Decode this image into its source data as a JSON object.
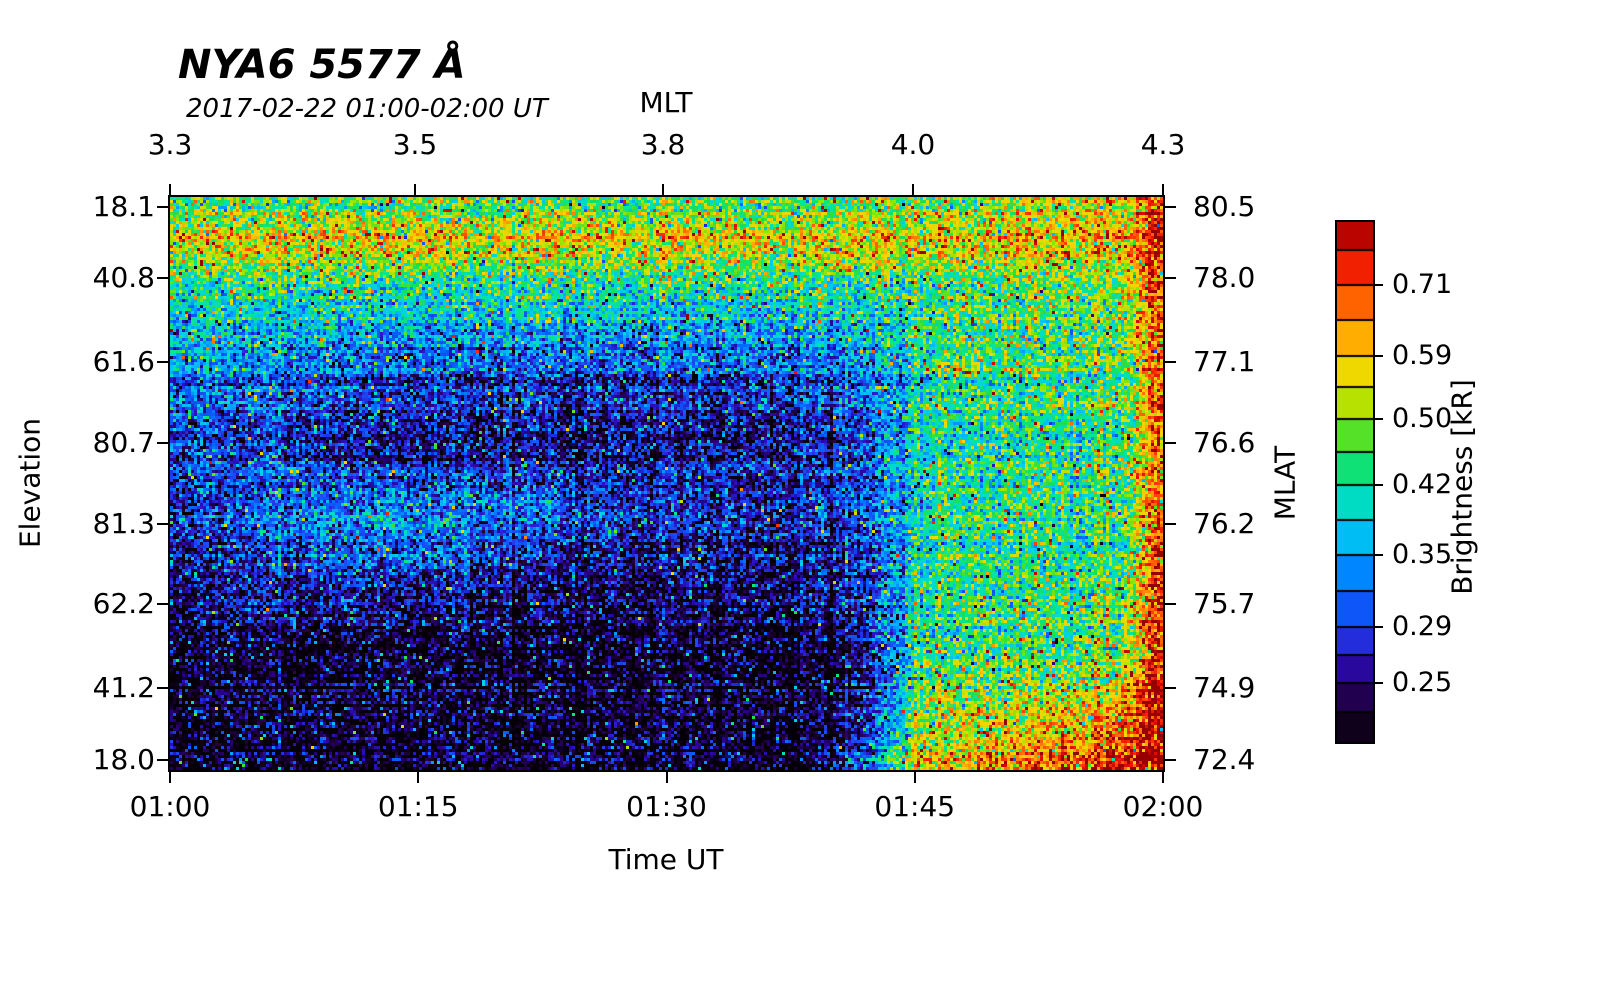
{
  "chart_data": {
    "type": "heatmap",
    "title": "NYA6 5577 Å",
    "subtitle": "2017-02-22 01:00-02:00 UT",
    "background": "#ffffff",
    "axes": {
      "top": {
        "label": "MLT",
        "ticks": [
          "3.3",
          "3.5",
          "3.8",
          "4.0",
          "4.3"
        ],
        "positions": [
          0,
          0.2467,
          0.4965,
          0.7482,
          1
        ]
      },
      "bottom": {
        "label": "Time UT",
        "ticks": [
          "01:00",
          "01:15",
          "01:30",
          "01:45",
          "02:00"
        ],
        "positions": [
          0,
          0.25,
          0.5,
          0.75,
          1
        ]
      },
      "left": {
        "label": "Elevation",
        "ticks": [
          "18.1",
          "40.8",
          "61.6",
          "80.7",
          "81.3",
          "62.2",
          "41.2",
          "18.0"
        ],
        "positions": [
          0.0175,
          0.1414,
          0.288,
          0.4293,
          0.5707,
          0.7103,
          0.8569,
          0.9825
        ]
      },
      "right": {
        "label": "MLAT",
        "ticks": [
          "80.5",
          "78.0",
          "77.1",
          "76.6",
          "76.2",
          "75.7",
          "74.9",
          "72.4"
        ],
        "positions": [
          0.0175,
          0.1414,
          0.288,
          0.4293,
          0.5707,
          0.7103,
          0.8569,
          0.9825
        ]
      }
    },
    "colorbar": {
      "label": "Brightness [kR]",
      "ticks": [
        0.71,
        0.59,
        0.5,
        0.42,
        0.35,
        0.29,
        0.25
      ],
      "scale": "log",
      "value_range": [
        0.21,
        0.84
      ]
    },
    "colormap_stops": [
      {
        "t": 0.0,
        "color": "#050008"
      },
      {
        "t": 0.07,
        "color": "#1c0038"
      },
      {
        "t": 0.12,
        "color": "#280080"
      },
      {
        "t": 0.17,
        "color": "#2814c8"
      },
      {
        "t": 0.22,
        "color": "#1e46f0"
      },
      {
        "t": 0.29,
        "color": "#0064ff"
      },
      {
        "t": 0.36,
        "color": "#00aaff"
      },
      {
        "t": 0.43,
        "color": "#00d2e6"
      },
      {
        "t": 0.49,
        "color": "#00e6a0"
      },
      {
        "t": 0.56,
        "color": "#1edc50"
      },
      {
        "t": 0.62,
        "color": "#8ce600"
      },
      {
        "t": 0.68,
        "color": "#dcdc00"
      },
      {
        "t": 0.74,
        "color": "#ffd200"
      },
      {
        "t": 0.8,
        "color": "#ff9600"
      },
      {
        "t": 0.88,
        "color": "#ff3c00"
      },
      {
        "t": 0.94,
        "color": "#e60a00"
      },
      {
        "t": 1.0,
        "color": "#960000"
      }
    ],
    "grid": {
      "rows": 14,
      "cols": 21,
      "row_axis": "elevation scan, top (18.1) to bottom (18.0)",
      "col_axis": "time 01:00 to 02:00 UT, last column is right-edge red strip",
      "units": "kR (approximate brightness read from colorbar)",
      "values": [
        [
          0.46,
          0.47,
          0.45,
          0.48,
          0.46,
          0.47,
          0.45,
          0.46,
          0.47,
          0.45,
          0.47,
          0.46,
          0.47,
          0.45,
          0.47,
          0.49,
          0.5,
          0.51,
          0.54,
          0.58,
          0.72
        ],
        [
          0.55,
          0.57,
          0.54,
          0.56,
          0.55,
          0.57,
          0.54,
          0.55,
          0.56,
          0.54,
          0.56,
          0.55,
          0.54,
          0.55,
          0.55,
          0.54,
          0.55,
          0.56,
          0.57,
          0.6,
          0.74
        ],
        [
          0.45,
          0.43,
          0.44,
          0.42,
          0.44,
          0.43,
          0.42,
          0.44,
          0.43,
          0.42,
          0.43,
          0.44,
          0.42,
          0.43,
          0.44,
          0.45,
          0.46,
          0.46,
          0.47,
          0.51,
          0.7
        ],
        [
          0.38,
          0.37,
          0.36,
          0.35,
          0.35,
          0.34,
          0.34,
          0.35,
          0.34,
          0.34,
          0.35,
          0.34,
          0.35,
          0.35,
          0.37,
          0.43,
          0.45,
          0.44,
          0.45,
          0.47,
          0.68
        ],
        [
          0.34,
          0.33,
          0.31,
          0.3,
          0.29,
          0.29,
          0.28,
          0.29,
          0.28,
          0.29,
          0.28,
          0.29,
          0.29,
          0.3,
          0.32,
          0.42,
          0.44,
          0.43,
          0.44,
          0.46,
          0.68
        ],
        [
          0.31,
          0.3,
          0.29,
          0.28,
          0.27,
          0.27,
          0.26,
          0.27,
          0.26,
          0.27,
          0.27,
          0.26,
          0.27,
          0.28,
          0.3,
          0.42,
          0.43,
          0.42,
          0.43,
          0.45,
          0.69
        ],
        [
          0.3,
          0.29,
          0.28,
          0.27,
          0.26,
          0.26,
          0.26,
          0.26,
          0.25,
          0.26,
          0.26,
          0.26,
          0.26,
          0.27,
          0.29,
          0.42,
          0.43,
          0.42,
          0.43,
          0.45,
          0.7
        ],
        [
          0.28,
          0.29,
          0.31,
          0.32,
          0.33,
          0.33,
          0.32,
          0.31,
          0.29,
          0.28,
          0.27,
          0.27,
          0.27,
          0.28,
          0.3,
          0.41,
          0.42,
          0.42,
          0.42,
          0.44,
          0.7
        ],
        [
          0.27,
          0.28,
          0.29,
          0.31,
          0.32,
          0.31,
          0.3,
          0.28,
          0.27,
          0.26,
          0.26,
          0.26,
          0.26,
          0.26,
          0.28,
          0.42,
          0.43,
          0.42,
          0.43,
          0.44,
          0.72
        ],
        [
          0.25,
          0.25,
          0.26,
          0.26,
          0.26,
          0.25,
          0.25,
          0.24,
          0.24,
          0.24,
          0.24,
          0.24,
          0.24,
          0.25,
          0.27,
          0.43,
          0.44,
          0.43,
          0.44,
          0.46,
          0.74
        ],
        [
          0.23,
          0.24,
          0.23,
          0.23,
          0.24,
          0.23,
          0.23,
          0.23,
          0.23,
          0.23,
          0.23,
          0.23,
          0.23,
          0.23,
          0.26,
          0.44,
          0.45,
          0.44,
          0.45,
          0.48,
          0.76
        ],
        [
          0.22,
          0.23,
          0.22,
          0.22,
          0.23,
          0.22,
          0.22,
          0.22,
          0.22,
          0.22,
          0.22,
          0.22,
          0.22,
          0.22,
          0.25,
          0.46,
          0.48,
          0.47,
          0.49,
          0.53,
          0.8
        ],
        [
          0.22,
          0.22,
          0.22,
          0.22,
          0.22,
          0.22,
          0.22,
          0.22,
          0.22,
          0.22,
          0.22,
          0.22,
          0.22,
          0.22,
          0.26,
          0.5,
          0.54,
          0.53,
          0.58,
          0.68,
          0.8
        ],
        [
          0.22,
          0.22,
          0.22,
          0.22,
          0.22,
          0.22,
          0.22,
          0.22,
          0.22,
          0.22,
          0.22,
          0.22,
          0.22,
          0.23,
          0.32,
          0.58,
          0.62,
          0.64,
          0.7,
          0.8,
          0.82
        ]
      ]
    }
  }
}
